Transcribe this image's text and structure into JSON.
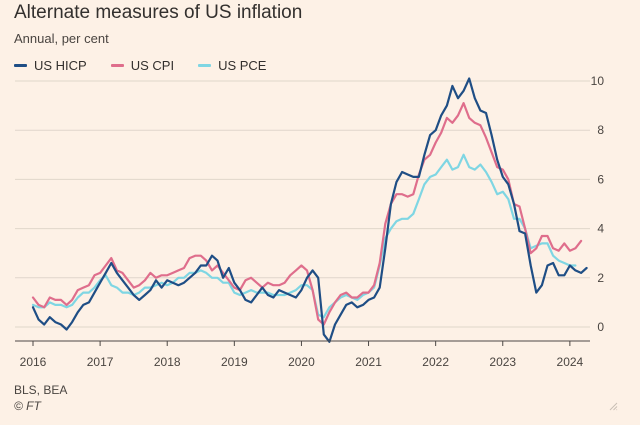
{
  "title": "Alternate measures of US inflation",
  "subtitle": "Annual, per cent",
  "source": "BLS, BEA",
  "copyright": "© FT",
  "colors": {
    "background": "#fdf1e6",
    "grid": "#e0d6cb",
    "axis": "#4d4845",
    "hicp": "#1f4e85",
    "cpi": "#df6e8c",
    "pce": "#7fd6e3"
  },
  "chart_data": {
    "type": "line",
    "title": "Alternate measures of US inflation",
    "ylabel": "Annual, per cent",
    "xlabel": "",
    "ylim": [
      -0.8,
      10
    ],
    "xlim": [
      2016,
      2024.3
    ],
    "y_ticks": [
      0,
      2,
      4,
      6,
      8,
      10
    ],
    "x_ticks": [
      2016,
      2017,
      2018,
      2019,
      2020,
      2021,
      2022,
      2023,
      2024
    ],
    "x_tick_labels": [
      "2016",
      "2017",
      "2018",
      "2019",
      "2020",
      "2021",
      "2022",
      "2023",
      "2024"
    ],
    "grid": true,
    "legend_position": "top-left",
    "series": [
      {
        "name": "US HICP",
        "key": "hicp",
        "points": [
          [
            2016.0,
            0.8
          ],
          [
            2016.083,
            0.3
          ],
          [
            2016.167,
            0.1
          ],
          [
            2016.25,
            0.4
          ],
          [
            2016.333,
            0.2
          ],
          [
            2016.417,
            0.1
          ],
          [
            2016.5,
            -0.1
          ],
          [
            2016.583,
            0.2
          ],
          [
            2016.667,
            0.6
          ],
          [
            2016.75,
            0.9
          ],
          [
            2016.833,
            1.0
          ],
          [
            2016.917,
            1.4
          ],
          [
            2017.0,
            1.8
          ],
          [
            2017.083,
            2.2
          ],
          [
            2017.167,
            2.6
          ],
          [
            2017.25,
            2.2
          ],
          [
            2017.333,
            1.9
          ],
          [
            2017.417,
            1.6
          ],
          [
            2017.5,
            1.3
          ],
          [
            2017.583,
            1.1
          ],
          [
            2017.667,
            1.3
          ],
          [
            2017.75,
            1.5
          ],
          [
            2017.833,
            1.9
          ],
          [
            2017.917,
            1.6
          ],
          [
            2018.0,
            1.9
          ],
          [
            2018.083,
            1.8
          ],
          [
            2018.167,
            1.7
          ],
          [
            2018.25,
            1.8
          ],
          [
            2018.333,
            2.0
          ],
          [
            2018.417,
            2.2
          ],
          [
            2018.5,
            2.5
          ],
          [
            2018.583,
            2.5
          ],
          [
            2018.667,
            2.9
          ],
          [
            2018.75,
            2.7
          ],
          [
            2018.833,
            2.0
          ],
          [
            2018.917,
            2.4
          ],
          [
            2019.0,
            1.8
          ],
          [
            2019.083,
            1.5
          ],
          [
            2019.167,
            1.1
          ],
          [
            2019.25,
            1.0
          ],
          [
            2019.333,
            1.3
          ],
          [
            2019.417,
            1.6
          ],
          [
            2019.5,
            1.3
          ],
          [
            2019.583,
            1.2
          ],
          [
            2019.667,
            1.5
          ],
          [
            2019.75,
            1.4
          ],
          [
            2019.833,
            1.3
          ],
          [
            2019.917,
            1.2
          ],
          [
            2020.0,
            1.5
          ],
          [
            2020.083,
            2.0
          ],
          [
            2020.167,
            2.3
          ],
          [
            2020.25,
            2.0
          ],
          [
            2020.333,
            -0.3
          ],
          [
            2020.417,
            -0.6
          ],
          [
            2020.5,
            0.1
          ],
          [
            2020.583,
            0.5
          ],
          [
            2020.667,
            0.9
          ],
          [
            2020.75,
            1.0
          ],
          [
            2020.833,
            0.8
          ],
          [
            2020.917,
            0.9
          ],
          [
            2021.0,
            1.1
          ],
          [
            2021.083,
            1.2
          ],
          [
            2021.167,
            1.6
          ],
          [
            2021.25,
            3.2
          ],
          [
            2021.333,
            5.0
          ],
          [
            2021.417,
            5.9
          ],
          [
            2021.5,
            6.3
          ],
          [
            2021.583,
            6.2
          ],
          [
            2021.667,
            6.1
          ],
          [
            2021.75,
            6.1
          ],
          [
            2021.833,
            7.0
          ],
          [
            2021.917,
            7.8
          ],
          [
            2022.0,
            8.0
          ],
          [
            2022.083,
            8.6
          ],
          [
            2022.167,
            9.0
          ],
          [
            2022.25,
            9.8
          ],
          [
            2022.333,
            9.3
          ],
          [
            2022.417,
            9.6
          ],
          [
            2022.5,
            10.1
          ],
          [
            2022.583,
            9.3
          ],
          [
            2022.667,
            8.8
          ],
          [
            2022.75,
            8.7
          ],
          [
            2022.833,
            7.8
          ],
          [
            2022.917,
            6.8
          ],
          [
            2023.0,
            6.1
          ],
          [
            2023.083,
            5.8
          ],
          [
            2023.167,
            5.0
          ],
          [
            2023.25,
            3.9
          ],
          [
            2023.333,
            3.8
          ],
          [
            2023.417,
            2.5
          ],
          [
            2023.5,
            1.4
          ],
          [
            2023.583,
            1.7
          ],
          [
            2023.667,
            2.5
          ],
          [
            2023.75,
            2.6
          ],
          [
            2023.833,
            2.1
          ],
          [
            2023.917,
            2.1
          ],
          [
            2024.0,
            2.5
          ],
          [
            2024.083,
            2.3
          ],
          [
            2024.167,
            2.2
          ],
          [
            2024.25,
            2.4
          ]
        ]
      },
      {
        "name": "US CPI",
        "key": "cpi",
        "points": [
          [
            2016.0,
            1.2
          ],
          [
            2016.083,
            0.9
          ],
          [
            2016.167,
            0.8
          ],
          [
            2016.25,
            1.2
          ],
          [
            2016.333,
            1.1
          ],
          [
            2016.417,
            1.1
          ],
          [
            2016.5,
            0.9
          ],
          [
            2016.583,
            1.1
          ],
          [
            2016.667,
            1.5
          ],
          [
            2016.75,
            1.6
          ],
          [
            2016.833,
            1.7
          ],
          [
            2016.917,
            2.1
          ],
          [
            2017.0,
            2.2
          ],
          [
            2017.083,
            2.5
          ],
          [
            2017.167,
            2.8
          ],
          [
            2017.25,
            2.3
          ],
          [
            2017.333,
            2.2
          ],
          [
            2017.417,
            1.9
          ],
          [
            2017.5,
            1.6
          ],
          [
            2017.583,
            1.7
          ],
          [
            2017.667,
            1.9
          ],
          [
            2017.75,
            2.2
          ],
          [
            2017.833,
            2.0
          ],
          [
            2017.917,
            2.1
          ],
          [
            2018.0,
            2.1
          ],
          [
            2018.083,
            2.2
          ],
          [
            2018.167,
            2.3
          ],
          [
            2018.25,
            2.4
          ],
          [
            2018.333,
            2.8
          ],
          [
            2018.417,
            2.9
          ],
          [
            2018.5,
            2.9
          ],
          [
            2018.583,
            2.7
          ],
          [
            2018.667,
            2.3
          ],
          [
            2018.75,
            2.5
          ],
          [
            2018.833,
            2.2
          ],
          [
            2018.917,
            1.9
          ],
          [
            2019.0,
            1.6
          ],
          [
            2019.083,
            1.5
          ],
          [
            2019.167,
            1.9
          ],
          [
            2019.25,
            2.0
          ],
          [
            2019.333,
            1.8
          ],
          [
            2019.417,
            1.6
          ],
          [
            2019.5,
            1.8
          ],
          [
            2019.583,
            1.7
          ],
          [
            2019.667,
            1.7
          ],
          [
            2019.75,
            1.8
          ],
          [
            2019.833,
            2.1
          ],
          [
            2019.917,
            2.3
          ],
          [
            2020.0,
            2.5
          ],
          [
            2020.083,
            2.3
          ],
          [
            2020.167,
            1.5
          ],
          [
            2020.25,
            0.3
          ],
          [
            2020.333,
            0.1
          ],
          [
            2020.417,
            0.6
          ],
          [
            2020.5,
            1.0
          ],
          [
            2020.583,
            1.3
          ],
          [
            2020.667,
            1.4
          ],
          [
            2020.75,
            1.2
          ],
          [
            2020.833,
            1.2
          ],
          [
            2020.917,
            1.4
          ],
          [
            2021.0,
            1.4
          ],
          [
            2021.083,
            1.7
          ],
          [
            2021.167,
            2.6
          ],
          [
            2021.25,
            4.2
          ],
          [
            2021.333,
            5.0
          ],
          [
            2021.417,
            5.4
          ],
          [
            2021.5,
            5.4
          ],
          [
            2021.583,
            5.3
          ],
          [
            2021.667,
            5.4
          ],
          [
            2021.75,
            6.2
          ],
          [
            2021.833,
            6.8
          ],
          [
            2021.917,
            7.0
          ],
          [
            2022.0,
            7.5
          ],
          [
            2022.083,
            7.9
          ],
          [
            2022.167,
            8.5
          ],
          [
            2022.25,
            8.3
          ],
          [
            2022.333,
            8.6
          ],
          [
            2022.417,
            9.1
          ],
          [
            2022.5,
            8.5
          ],
          [
            2022.583,
            8.3
          ],
          [
            2022.667,
            8.2
          ],
          [
            2022.75,
            7.7
          ],
          [
            2022.833,
            7.1
          ],
          [
            2022.917,
            6.5
          ],
          [
            2023.0,
            6.4
          ],
          [
            2023.083,
            6.0
          ],
          [
            2023.167,
            5.0
          ],
          [
            2023.25,
            4.9
          ],
          [
            2023.333,
            4.0
          ],
          [
            2023.417,
            3.0
          ],
          [
            2023.5,
            3.2
          ],
          [
            2023.583,
            3.7
          ],
          [
            2023.667,
            3.7
          ],
          [
            2023.75,
            3.2
          ],
          [
            2023.833,
            3.1
          ],
          [
            2023.917,
            3.4
          ],
          [
            2024.0,
            3.1
          ],
          [
            2024.083,
            3.2
          ],
          [
            2024.167,
            3.5
          ]
        ]
      },
      {
        "name": "US PCE",
        "key": "pce",
        "points": [
          [
            2016.0,
            0.9
          ],
          [
            2016.083,
            0.8
          ],
          [
            2016.167,
            0.8
          ],
          [
            2016.25,
            1.0
          ],
          [
            2016.333,
            0.9
          ],
          [
            2016.417,
            0.9
          ],
          [
            2016.5,
            0.8
          ],
          [
            2016.583,
            0.9
          ],
          [
            2016.667,
            1.2
          ],
          [
            2016.75,
            1.4
          ],
          [
            2016.833,
            1.4
          ],
          [
            2016.917,
            1.6
          ],
          [
            2017.0,
            1.9
          ],
          [
            2017.083,
            2.1
          ],
          [
            2017.167,
            1.7
          ],
          [
            2017.25,
            1.6
          ],
          [
            2017.333,
            1.4
          ],
          [
            2017.417,
            1.4
          ],
          [
            2017.5,
            1.3
          ],
          [
            2017.583,
            1.4
          ],
          [
            2017.667,
            1.6
          ],
          [
            2017.75,
            1.6
          ],
          [
            2017.833,
            1.7
          ],
          [
            2017.917,
            1.8
          ],
          [
            2018.0,
            1.7
          ],
          [
            2018.083,
            1.8
          ],
          [
            2018.167,
            2.0
          ],
          [
            2018.25,
            2.0
          ],
          [
            2018.333,
            2.2
          ],
          [
            2018.417,
            2.2
          ],
          [
            2018.5,
            2.3
          ],
          [
            2018.583,
            2.2
          ],
          [
            2018.667,
            2.0
          ],
          [
            2018.75,
            2.0
          ],
          [
            2018.833,
            1.8
          ],
          [
            2018.917,
            1.8
          ],
          [
            2019.0,
            1.4
          ],
          [
            2019.083,
            1.3
          ],
          [
            2019.167,
            1.4
          ],
          [
            2019.25,
            1.5
          ],
          [
            2019.333,
            1.4
          ],
          [
            2019.417,
            1.4
          ],
          [
            2019.5,
            1.4
          ],
          [
            2019.583,
            1.3
          ],
          [
            2019.667,
            1.3
          ],
          [
            2019.75,
            1.3
          ],
          [
            2019.833,
            1.4
          ],
          [
            2019.917,
            1.5
          ],
          [
            2020.0,
            1.7
          ],
          [
            2020.083,
            1.7
          ],
          [
            2020.167,
            1.5
          ],
          [
            2020.25,
            0.5
          ],
          [
            2020.333,
            0.4
          ],
          [
            2020.417,
            0.8
          ],
          [
            2020.5,
            1.0
          ],
          [
            2020.583,
            1.2
          ],
          [
            2020.667,
            1.3
          ],
          [
            2020.75,
            1.2
          ],
          [
            2020.833,
            1.1
          ],
          [
            2020.917,
            1.3
          ],
          [
            2021.0,
            1.4
          ],
          [
            2021.083,
            1.6
          ],
          [
            2021.167,
            2.5
          ],
          [
            2021.25,
            3.6
          ],
          [
            2021.333,
            4.0
          ],
          [
            2021.417,
            4.3
          ],
          [
            2021.5,
            4.4
          ],
          [
            2021.583,
            4.4
          ],
          [
            2021.667,
            4.6
          ],
          [
            2021.75,
            5.2
          ],
          [
            2021.833,
            5.8
          ],
          [
            2021.917,
            6.1
          ],
          [
            2022.0,
            6.2
          ],
          [
            2022.083,
            6.5
          ],
          [
            2022.167,
            6.8
          ],
          [
            2022.25,
            6.4
          ],
          [
            2022.333,
            6.5
          ],
          [
            2022.417,
            7.0
          ],
          [
            2022.5,
            6.5
          ],
          [
            2022.583,
            6.4
          ],
          [
            2022.667,
            6.6
          ],
          [
            2022.75,
            6.3
          ],
          [
            2022.833,
            5.9
          ],
          [
            2022.917,
            5.4
          ],
          [
            2023.0,
            5.5
          ],
          [
            2023.083,
            5.2
          ],
          [
            2023.167,
            4.4
          ],
          [
            2023.25,
            4.4
          ],
          [
            2023.333,
            4.0
          ],
          [
            2023.417,
            3.2
          ],
          [
            2023.5,
            3.3
          ],
          [
            2023.583,
            3.4
          ],
          [
            2023.667,
            3.4
          ],
          [
            2023.75,
            2.9
          ],
          [
            2023.833,
            2.7
          ],
          [
            2023.917,
            2.6
          ],
          [
            2024.0,
            2.5
          ],
          [
            2024.083,
            2.5
          ]
        ]
      }
    ]
  }
}
